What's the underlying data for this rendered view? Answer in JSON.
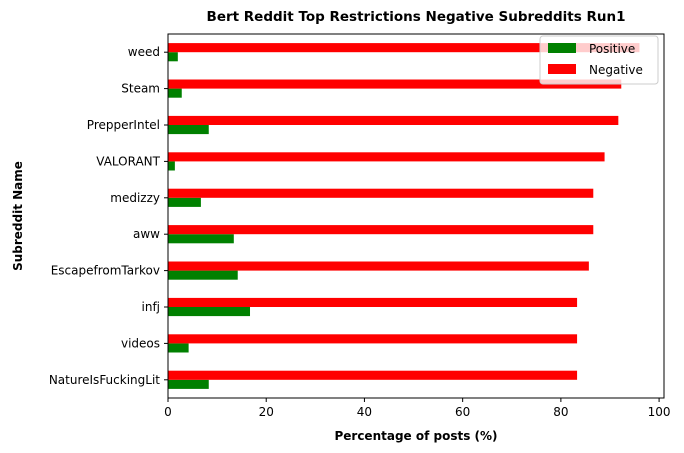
{
  "chart_data": {
    "type": "bar",
    "orientation": "horizontal",
    "title": "Bert Reddit Top Restrictions Negative Subreddits Run1",
    "xlabel": "Percentage of posts (%)",
    "ylabel": "Subreddit Name",
    "categories": [
      "NatureIsFuckingLit",
      "videos",
      "infj",
      "EscapefromTarkov",
      "aww",
      "medizzy",
      "VALORANT",
      "PrepperIntel",
      "Steam",
      "weed"
    ],
    "series": [
      {
        "name": "Positive",
        "color": "#008000",
        "values": [
          8.3,
          4.2,
          16.7,
          14.2,
          13.4,
          6.7,
          1.4,
          8.3,
          2.8,
          2.0
        ]
      },
      {
        "name": "Negative",
        "color": "#ff0000",
        "values": [
          83.3,
          83.3,
          83.3,
          85.7,
          86.6,
          86.6,
          88.9,
          91.7,
          92.3,
          96.0
        ]
      }
    ],
    "xlim": [
      0,
      101
    ],
    "xticks": [
      0,
      20,
      40,
      60,
      80,
      100
    ],
    "grid": false,
    "legend_position": "top-right"
  }
}
